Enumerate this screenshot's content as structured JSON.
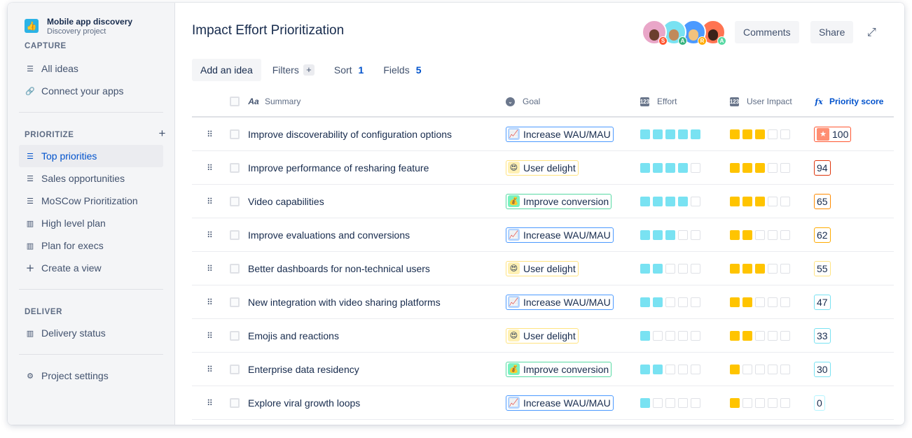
{
  "sidebar": {
    "project_name": "Mobile app discovery",
    "project_sub": "Discovery project",
    "project_icon": "thumbs-up-icon",
    "capture_title": "CAPTURE",
    "capture_items": [
      {
        "label": "All ideas",
        "icon": "list-icon"
      },
      {
        "label": "Connect your apps",
        "icon": "link-icon"
      }
    ],
    "prioritize_title": "PRIORITIZE",
    "prioritize_items": [
      {
        "label": "Top priorities",
        "icon": "list-icon",
        "active": true
      },
      {
        "label": "Sales opportunities",
        "icon": "list-icon"
      },
      {
        "label": "MoSCow Prioritization",
        "icon": "list-icon"
      },
      {
        "label": "High level plan",
        "icon": "board-icon"
      },
      {
        "label": "Plan for execs",
        "icon": "board-icon"
      },
      {
        "label": "Create a view",
        "icon": "plus-icon"
      }
    ],
    "deliver_title": "DELIVER",
    "deliver_items": [
      {
        "label": "Delivery status",
        "icon": "board-icon"
      }
    ],
    "settings_label": "Project settings"
  },
  "header": {
    "title": "Impact Effort Prioritization",
    "avatars": [
      {
        "initial": "S",
        "bg": "#e9a6c8",
        "badge": "#ff5630"
      },
      {
        "initial": "A",
        "bg": "#79e2f2",
        "badge": "#36b37e"
      },
      {
        "initial": "R",
        "bg": "#4c9aff",
        "badge": "#ffab00"
      },
      {
        "initial": "A",
        "bg": "#ff7452",
        "badge": "#57d9a3"
      }
    ],
    "comments_label": "Comments",
    "share_label": "Share"
  },
  "toolbar": {
    "add_label": "Add an idea",
    "filters_label": "Filters",
    "sort_label": "Sort",
    "sort_count": "1",
    "fields_label": "Fields",
    "fields_count": "5"
  },
  "table": {
    "columns": {
      "summary": "Summary",
      "goal": "Goal",
      "effort": "Effort",
      "impact": "User Impact",
      "score": "Priority score"
    },
    "goals": {
      "wau": {
        "label": "Increase WAU/MAU",
        "border": "#4c9aff",
        "icon_bg": "#b3d4ff",
        "icon": "chart-up-icon"
      },
      "delight": {
        "label": "User delight",
        "border": "#ffe380",
        "icon_bg": "#fff0b3",
        "icon": "heart-eyes-icon"
      },
      "conv": {
        "label": "Improve conversion",
        "border": "#57d9a3",
        "icon_bg": "#79f2c0",
        "icon": "money-bag-icon"
      }
    },
    "colors": {
      "effort": "#79e2f2",
      "impact": "#ffc400"
    },
    "rows": [
      {
        "summary": "Improve discoverability of configuration options",
        "goal": "wau",
        "effort": 5,
        "impact": 3,
        "score": "100",
        "score_border": "#ff5630",
        "star": true
      },
      {
        "summary": "Improve performance of resharing feature",
        "goal": "delight",
        "effort": 4,
        "impact": 3,
        "score": "94",
        "score_border": "#de350b"
      },
      {
        "summary": "Video capabilities",
        "goal": "conv",
        "effort": 4,
        "impact": 3,
        "score": "65",
        "score_border": "#ff8b00"
      },
      {
        "summary": "Improve evaluations and conversions",
        "goal": "wau",
        "effort": 3,
        "impact": 2,
        "score": "62",
        "score_border": "#ffab00"
      },
      {
        "summary": "Better dashboards for non-technical users",
        "goal": "delight",
        "effort": 2,
        "impact": 3,
        "score": "55",
        "score_border": "#ffe380"
      },
      {
        "summary": "New integration with video sharing platforms",
        "goal": "wau",
        "effort": 2,
        "impact": 2,
        "score": "47",
        "score_border": "#79e2f2"
      },
      {
        "summary": "Emojis and reactions",
        "goal": "delight",
        "effort": 1,
        "impact": 2,
        "score": "33",
        "score_border": "#79e2f2"
      },
      {
        "summary": "Enterprise data residency",
        "goal": "conv",
        "effort": 2,
        "impact": 1,
        "score": "30",
        "score_border": "#79e2f2"
      },
      {
        "summary": "Explore viral growth loops",
        "goal": "wau",
        "effort": 1,
        "impact": 1,
        "score": "0",
        "score_border": "#b3f5ff"
      }
    ]
  }
}
